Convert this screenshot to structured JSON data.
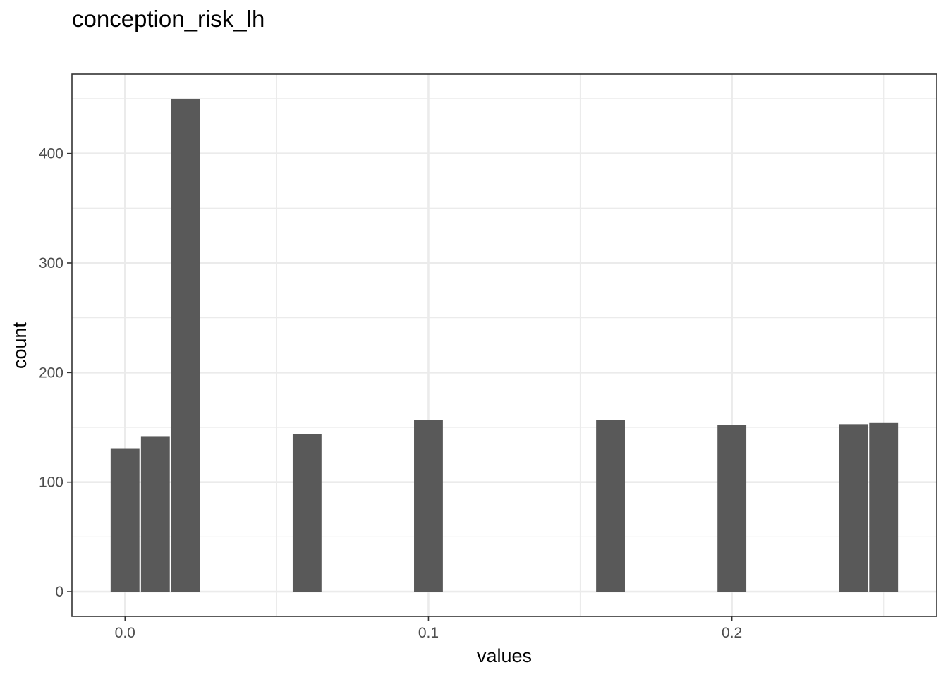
{
  "chart_data": {
    "type": "bar",
    "title": "conception_risk_lh",
    "xlabel": "values",
    "ylabel": "count",
    "xlim": [
      -0.0175,
      0.2675
    ],
    "ylim": [
      -22.5,
      472.5
    ],
    "x_ticks": [
      0.0,
      0.1,
      0.2
    ],
    "x_tick_labels": [
      "0.0",
      "0.1",
      "0.2"
    ],
    "y_ticks": [
      0,
      100,
      200,
      300,
      400
    ],
    "y_tick_labels": [
      "0",
      "100",
      "200",
      "300",
      "400"
    ],
    "bin_width": 0.0095,
    "bins": [
      {
        "x": 0.0,
        "count": 131
      },
      {
        "x": 0.01,
        "count": 142
      },
      {
        "x": 0.02,
        "count": 450
      },
      {
        "x": 0.06,
        "count": 144
      },
      {
        "x": 0.1,
        "count": 157
      },
      {
        "x": 0.16,
        "count": 157
      },
      {
        "x": 0.2,
        "count": 152
      },
      {
        "x": 0.24,
        "count": 153
      },
      {
        "x": 0.25,
        "count": 154
      }
    ],
    "bar_color": "#595959",
    "grid": true,
    "legend": "none"
  }
}
